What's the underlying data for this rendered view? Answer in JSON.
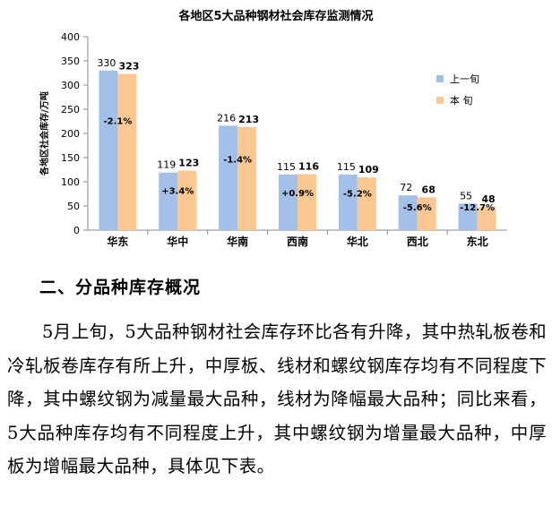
{
  "chart_data": {
    "type": "bar",
    "title": "各地区5大品种钢材社会库存监测情况",
    "ylabel": "各地区社会库存/万吨",
    "xlabel": "",
    "ylim": [
      0,
      400
    ],
    "yticks": [
      0,
      50,
      100,
      150,
      200,
      250,
      300,
      350,
      400
    ],
    "categories": [
      "华东",
      "华中",
      "华南",
      "西南",
      "华北",
      "西北",
      "东北"
    ],
    "series": [
      {
        "name": "上一旬",
        "color": "#a3c0e9",
        "values": [
          330,
          119,
          216,
          115,
          115,
          72,
          55
        ]
      },
      {
        "name": "本 旬",
        "color": "#fbc893",
        "values": [
          323,
          123,
          213,
          116,
          109,
          68,
          48
        ]
      }
    ],
    "changes": [
      "-2.1%",
      "+3.4%",
      "-1.4%",
      "+0.9%",
      "-5.2%",
      "-5.6%",
      "-12.7%"
    ],
    "legend": "right",
    "grid": false
  },
  "section": {
    "heading": "二、分品种库存概况"
  },
  "paragraph": "5月上旬，5大品种钢材社会库存环比各有升降，其中热轧板卷和冷轧板卷库存有所上升，中厚板、线材和螺纹钢库存均有不同程度下降，其中螺纹钢为减量最大品种，线材为降幅最大品种；同比来看，5大品种库存均有不同程度上升，其中螺纹钢为增量最大品种，中厚板为增幅最大品种，具体见下表。"
}
